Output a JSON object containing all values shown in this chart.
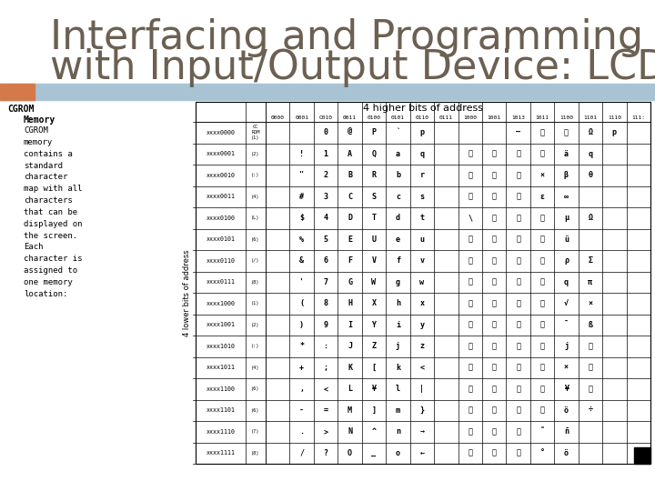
{
  "title_line1": "Interfacing and Programming",
  "title_line2": "with Input/Output Device: LCD",
  "title_color": "#6b6052",
  "title_fontsize": 32,
  "header_bg": "#a8c4d4",
  "orange_bar_color": "#d47a4a",
  "orange_bar_width": 0.055,
  "text_block_title": "CGROM\n    Memory",
  "text_block_body": "CGROM\nmemory\ncontains a\nstandard\ncharacter\nmap with all\ncharacters\nthat can be\ndisplayed on\nthe screen.\nEach\ncharacter is\nassigned to\none memory\nlocation:",
  "text_color": "#000000",
  "bg_color": "#ffffff",
  "table_header": "4 higher bits of address",
  "col_headers": [
    "0000",
    "0001",
    "C010",
    "0011",
    "0100",
    "0101",
    "0110",
    "0111",
    "1000",
    "1001",
    "1013",
    "1011",
    "1100",
    "1101",
    "1110",
    "111:"
  ],
  "row_headers": [
    "xxxx0000",
    "xxxx0001",
    "xxxx0010",
    "xxxx0011",
    "xxxx0100",
    "xxxx0101",
    "xxxx0110",
    "xxxx0111",
    "xxxx1000",
    "xxxx1001",
    "xxxx1010",
    "xxxx1011",
    "xxxx1100",
    "xxxx1101",
    "xxxx1110",
    "xxxx1111"
  ],
  "row_sub": [
    "CC\nROM\n(1)",
    "(2)",
    "(:)",
    "(4)",
    "(L)",
    "(6)",
    "(/)",
    "(8)",
    "(1)",
    "(2)",
    "(:)",
    "(4)",
    "(6)",
    "(6)",
    "(7)",
    "(8)"
  ],
  "table_image_path": null,
  "rotated_label": "4 lower bits of address"
}
